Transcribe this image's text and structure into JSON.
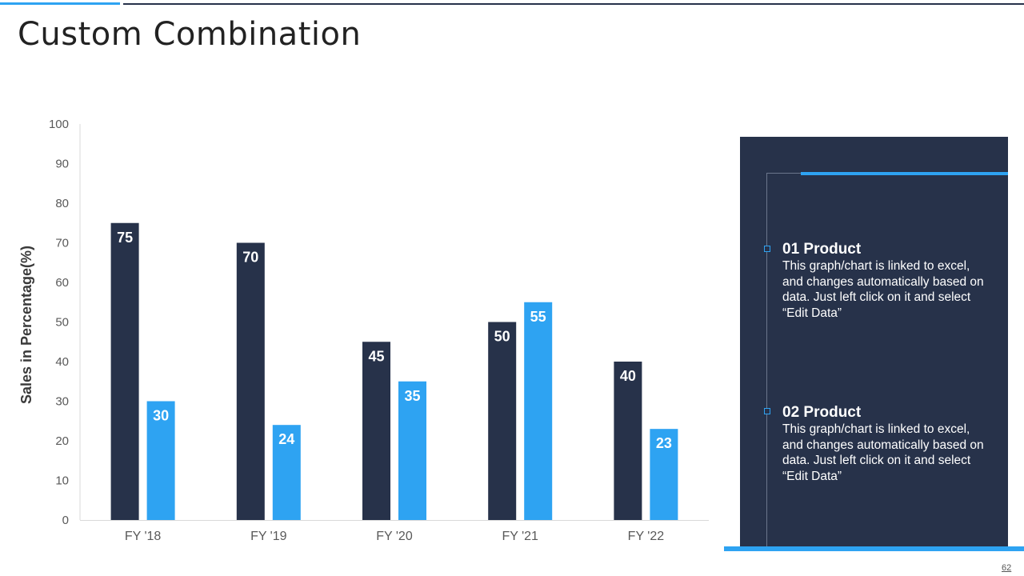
{
  "slide": {
    "title": "Custom Combination",
    "page_number": "62"
  },
  "colors": {
    "dark": "#27324a",
    "accent": "#2ea3f2",
    "axis_text": "#595959"
  },
  "chart_data": {
    "type": "bar",
    "categories": [
      "FY '18",
      "FY '19",
      "FY '20",
      "FY '21",
      "FY '22"
    ],
    "series": [
      {
        "values": [
          75,
          70,
          45,
          50,
          40
        ],
        "color": "#27324a"
      },
      {
        "values": [
          30,
          24,
          35,
          55,
          23
        ],
        "color": "#2ea3f2"
      }
    ],
    "ylabel": "Sales in Percentage(%)",
    "ylim": [
      0,
      100
    ],
    "yticks": [
      0,
      10,
      20,
      30,
      40,
      50,
      60,
      70,
      80,
      90,
      100
    ],
    "grid": false,
    "data_labels": true
  },
  "panel": {
    "items": [
      {
        "title": "01 Product",
        "text": "This graph/chart is linked to excel, and changes automatically based on data. Just left click on it and select “Edit Data”"
      },
      {
        "title": "02 Product",
        "text": "This graph/chart is linked to excel, and changes automatically based on data. Just left click on it and select “Edit Data”"
      }
    ]
  }
}
